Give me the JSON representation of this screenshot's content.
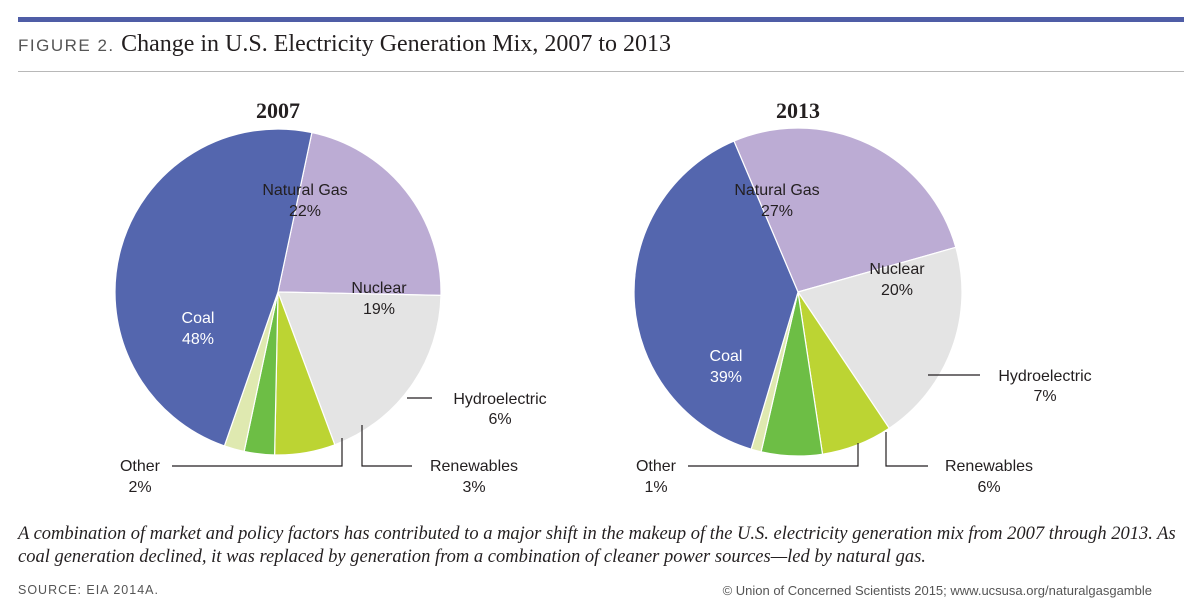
{
  "figure": {
    "label": "FIGURE 2.",
    "title": "Change in U.S. Electricity Generation Mix, 2007 to 2013",
    "caption": "A combination of market and policy factors has contributed to a major shift in the makeup of the U.S. electricity generation mix from 2007 through 2013. As coal generation declined, it was replaced by generation from a combination of cleaner power sources—led by natural gas.",
    "source": "SOURCE: EIA 2014A.",
    "credit": "© Union of Concerned Scientists 2015; www.ucsusa.org/naturalgasgamble"
  },
  "colors": {
    "rule": "#4f5da6",
    "Natural Gas": "#bcacd4",
    "Nuclear": "#e4e4e4",
    "Hydroelectric": "#bcd433",
    "Renewables": "#6dbe45",
    "Other": "#dfe9b0",
    "Coal": "#5466ae"
  },
  "chart_data": [
    {
      "type": "pie",
      "title": "2007",
      "unit": "%",
      "slices": [
        {
          "label": "Natural Gas",
          "value": 22,
          "display": "22%"
        },
        {
          "label": "Nuclear",
          "value": 19,
          "display": "19%"
        },
        {
          "label": "Hydroelectric",
          "value": 6,
          "display": "6%"
        },
        {
          "label": "Renewables",
          "value": 3,
          "display": "3%"
        },
        {
          "label": "Other",
          "value": 2,
          "display": "2%"
        },
        {
          "label": "Coal",
          "value": 48,
          "display": "48%"
        }
      ]
    },
    {
      "type": "pie",
      "title": "2013",
      "unit": "%",
      "slices": [
        {
          "label": "Natural Gas",
          "value": 27,
          "display": "27%"
        },
        {
          "label": "Nuclear",
          "value": 20,
          "display": "20%"
        },
        {
          "label": "Hydroelectric",
          "value": 7,
          "display": "7%"
        },
        {
          "label": "Renewables",
          "value": 6,
          "display": "6%"
        },
        {
          "label": "Other",
          "value": 1,
          "display": "1%"
        },
        {
          "label": "Coal",
          "value": 39,
          "display": "39%"
        }
      ]
    }
  ]
}
